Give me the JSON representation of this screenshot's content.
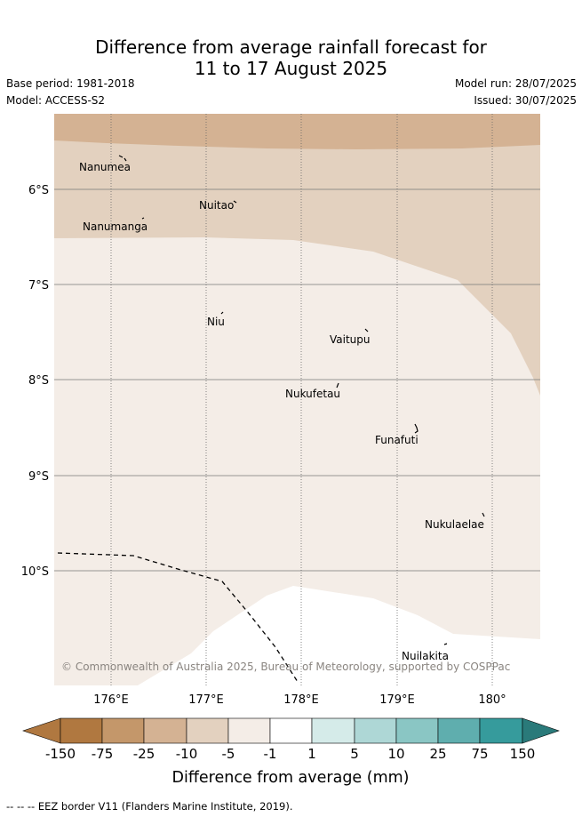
{
  "title_line1": "Difference from average rainfall forecast for",
  "title_line2": "11 to 17 August 2025",
  "base_period": "Base period: 1981-2018",
  "model": "Model: ACCESS-S2",
  "model_run": "Model run: 28/07/2025",
  "issued": "Issued: 30/07/2025",
  "map": {
    "lat_labels": [
      "6°S",
      "7°S",
      "8°S",
      "9°S",
      "10°S"
    ],
    "lon_labels": [
      "176°E",
      "177°E",
      "178°E",
      "179°E",
      "180°"
    ],
    "places": [
      "Nanumea",
      "Nuitao",
      "Nanumanga",
      "Niu",
      "Vaitupu",
      "Nukufetau",
      "Funafuti",
      "Nukulaelae",
      "Nuilakita"
    ],
    "copyright": "© Commonwealth of Australia 2025, Bureau of Meteorology, supported by COSPPac"
  },
  "colorbar": {
    "labels": [
      "-150",
      "-75",
      "-25",
      "-10",
      "-5",
      "-1",
      "1",
      "5",
      "10",
      "25",
      "75",
      "150"
    ],
    "colors": [
      "#b07840",
      "#c4976a",
      "#d4b293",
      "#e3d1bf",
      "#f4ede7",
      "#ffffff",
      "#d5ebe9",
      "#aed7d6",
      "#8ac6c4",
      "#5faeae",
      "#369b9c",
      "#2a7a7a"
    ],
    "title": "Difference from average (mm)"
  },
  "legend_note": "--  --  -- EEZ border V11 (Flanders Marine Institute, 2019)."
}
